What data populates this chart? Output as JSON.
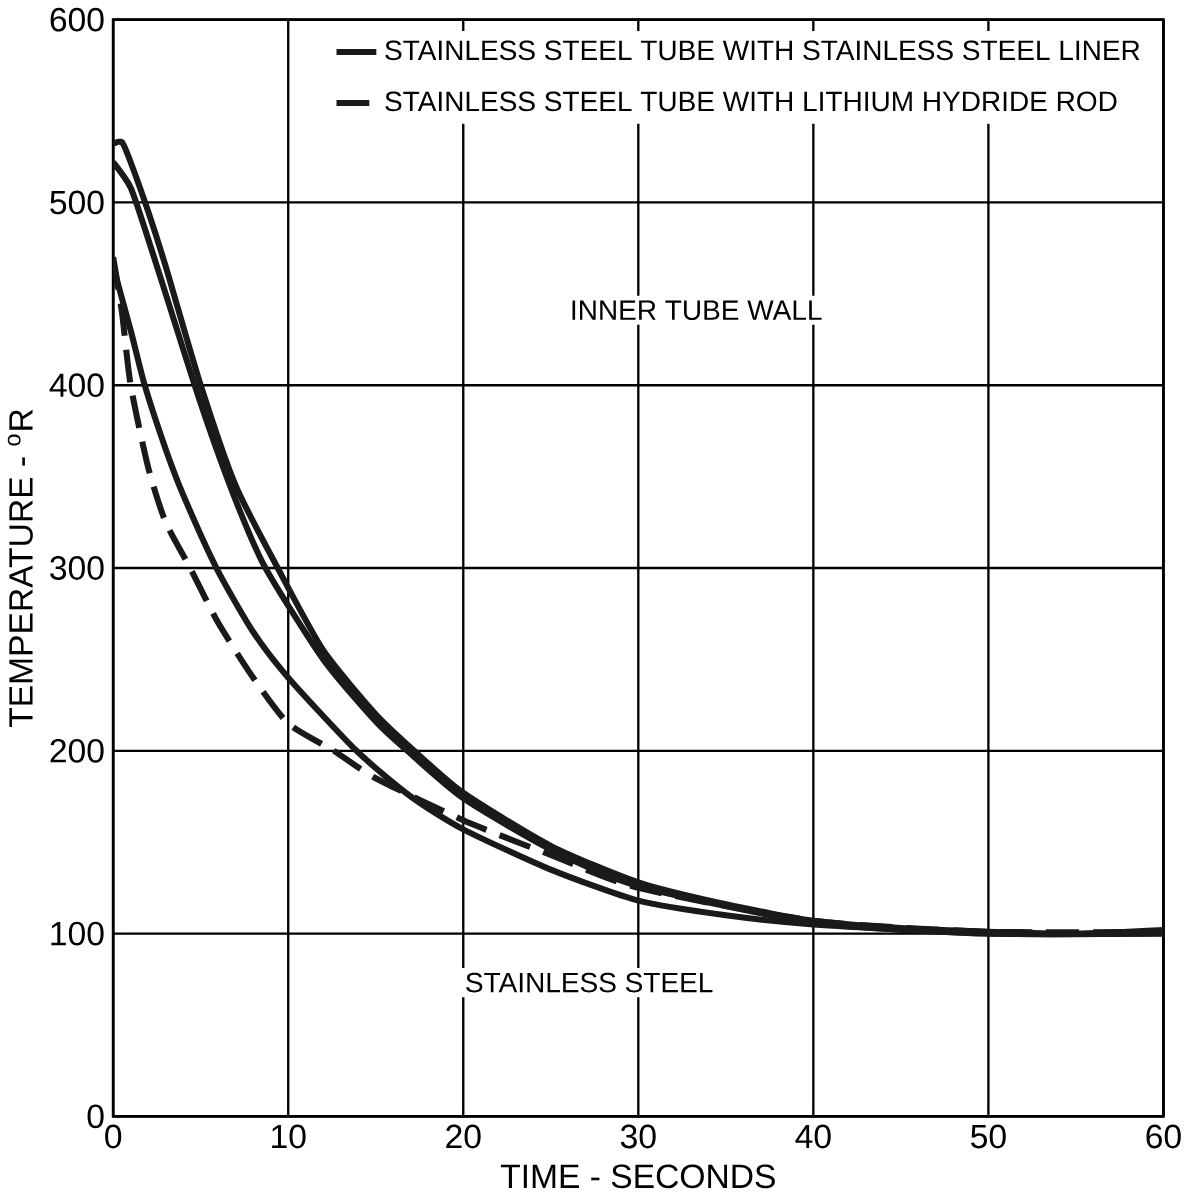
{
  "chart_data": {
    "type": "line",
    "xlabel": "TIME - SECONDS",
    "ylabel": "TEMPERATURE - $^{o}$R",
    "xlim": [
      0,
      60
    ],
    "ylim": [
      0,
      600
    ],
    "xticks": [
      0,
      10,
      20,
      30,
      40,
      50,
      60
    ],
    "yticks": [
      0,
      100,
      200,
      300,
      400,
      500,
      600
    ],
    "grid": true,
    "legend": "top right",
    "series": [
      {
        "name": "STAINLESS STEEL TUBE WITH STAINLESS STEEL LINER",
        "color": "#1a1a1a",
        "line_style": "solid",
        "x": [
          0,
          0.5,
          1,
          2,
          3,
          5,
          7,
          9.4,
          12,
          15,
          17.2,
          20,
          25,
          30,
          35,
          40,
          45,
          50,
          55,
          60
        ],
        "values": [
          532,
          533,
          522,
          495,
          465,
          400,
          345,
          300,
          255,
          220,
          200,
          177,
          148,
          128,
          116,
          107,
          103,
          101,
          100,
          102
        ]
      },
      {
        "name": "STAINLESS STEEL TUBE WITH LITHIUM HYDRIDE ROD",
        "color": "#1a1a1a",
        "line_style": "dashed",
        "x": [
          0,
          0.5,
          1,
          2,
          3,
          4.4,
          6,
          8,
          10,
          12.6,
          15,
          20,
          25,
          30,
          40,
          50,
          60
        ],
        "values": [
          470,
          440,
          400,
          355,
          325,
          300,
          270,
          240,
          215,
          200,
          185,
          162,
          143,
          125,
          107,
          101,
          101
        ]
      },
      {
        "color": "#1a1a1a",
        "line_style": "solid",
        "x": [
          0,
          1,
          2,
          3,
          5,
          7,
          8.7,
          12,
          15,
          16.8,
          20,
          25,
          30,
          40,
          50,
          60
        ],
        "values": [
          522,
          508,
          480,
          450,
          390,
          337,
          300,
          250,
          216,
          200,
          174,
          146,
          126,
          106,
          100,
          100
        ]
      },
      {
        "color": "#1a1a1a",
        "line_style": "solid",
        "x": [
          0,
          1,
          1.8,
          3,
          4,
          5.9,
          8,
          10,
          13.9,
          17,
          20,
          25,
          30,
          35,
          40,
          50,
          60
        ],
        "values": [
          465,
          430,
          400,
          365,
          340,
          300,
          265,
          240,
          200,
          175,
          157,
          135,
          118,
          110,
          105,
          100,
          100
        ]
      }
    ],
    "annotations": [
      "INNER TUBE WALL",
      "STAINLESS STEEL"
    ]
  }
}
